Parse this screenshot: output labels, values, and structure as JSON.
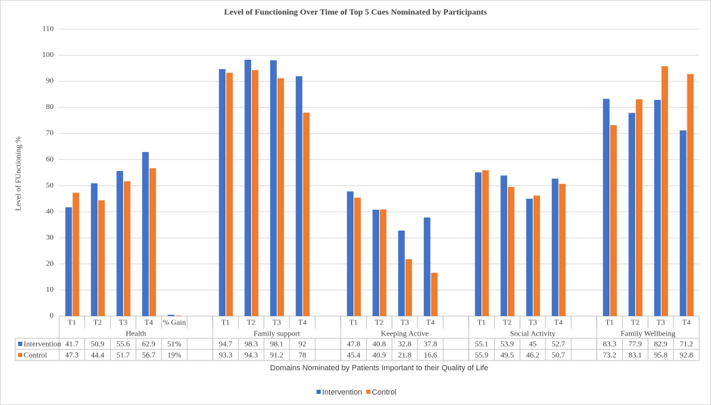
{
  "chart_data": {
    "type": "bar",
    "title": "Level of Functioning  Over Time of Top  5 Cues Nominated  by Participants",
    "y_axis_title": "Level of FUnctioning %",
    "x_axis_title": "Domains Nominated by Patients Important to their Quality of Life",
    "category_groups": [
      {
        "name": "Health",
        "categories": [
          "T1",
          "T2",
          "T3",
          "T4",
          "% Gain",
          null
        ]
      },
      {
        "name": "Family support",
        "categories": [
          "T1",
          "T2",
          "T3",
          "T4",
          null
        ]
      },
      {
        "name": "Keeping Active",
        "categories": [
          "T1",
          "T2",
          "T3",
          "T4",
          null
        ]
      },
      {
        "name": "Social Activity",
        "categories": [
          "T1",
          "T2",
          "T3",
          "T4",
          null
        ]
      },
      {
        "name": "Family Wellbeing",
        "categories": [
          "T1",
          "T2",
          "T3",
          "T4"
        ]
      }
    ],
    "series": [
      {
        "name": "Intervention",
        "color": "#4472c4",
        "values": [
          41.7,
          50.9,
          55.6,
          62.9,
          0.51,
          null,
          94.7,
          98.3,
          98.1,
          92,
          null,
          47.8,
          40.8,
          32.8,
          37.8,
          null,
          55.1,
          53.9,
          45,
          52.7,
          null,
          83.3,
          77.9,
          82.9,
          71.2
        ],
        "value_labels": [
          null,
          null,
          null,
          null,
          "51%",
          null,
          null,
          null,
          null,
          null,
          null,
          null,
          null,
          null,
          null,
          null,
          null,
          null,
          null,
          null,
          null,
          null,
          null,
          null,
          null
        ]
      },
      {
        "name": "Control",
        "color": "#ed7d31",
        "values": [
          47.3,
          44.4,
          51.7,
          56.7,
          0.19,
          null,
          93.3,
          94.3,
          91.2,
          78,
          null,
          45.4,
          40.9,
          21.8,
          16.6,
          null,
          55.9,
          49.5,
          46.2,
          50.7,
          null,
          73.2,
          83.1,
          95.8,
          92.8
        ],
        "value_labels": [
          null,
          null,
          null,
          null,
          "19%",
          null,
          null,
          null,
          null,
          null,
          null,
          null,
          null,
          null,
          null,
          null,
          null,
          null,
          null,
          null,
          null,
          null,
          null,
          null,
          null
        ]
      }
    ],
    "ylim": [
      0,
      110
    ],
    "yticks": [
      0,
      10,
      20,
      30,
      40,
      50,
      60,
      70,
      80,
      90,
      100,
      110
    ],
    "grid": true,
    "legend_position": "bottom"
  }
}
